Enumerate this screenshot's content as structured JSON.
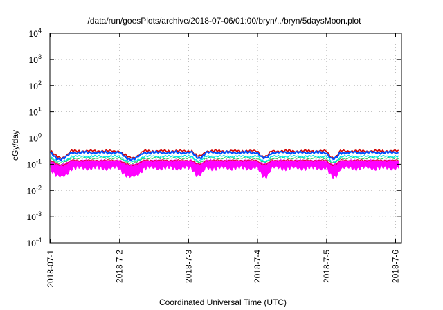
{
  "chart_data": {
    "type": "line",
    "title": "/data/run/goesPlots/archive/2018-07-06/01:00/bryn/../bryn/5daysMoon.plot",
    "xlabel": "Coordinated Universal Time (UTC)",
    "ylabel": "cGy/day",
    "yscale": "log",
    "ylim": [
      0.0001,
      10000
    ],
    "xlim": [
      "2018-07-01",
      "2018-07-06 01:00"
    ],
    "grid": true,
    "yticks": [
      {
        "value": 0.0001,
        "base": "10",
        "exp": "-4"
      },
      {
        "value": 0.001,
        "base": "10",
        "exp": "-3"
      },
      {
        "value": 0.01,
        "base": "10",
        "exp": "-2"
      },
      {
        "value": 0.1,
        "base": "10",
        "exp": "-1"
      },
      {
        "value": 1,
        "base": "10",
        "exp": "0"
      },
      {
        "value": 10,
        "base": "10",
        "exp": "1"
      },
      {
        "value": 100,
        "base": "10",
        "exp": "2"
      },
      {
        "value": 1000,
        "base": "10",
        "exp": "3"
      },
      {
        "value": 10000,
        "base": "10",
        "exp": "4"
      }
    ],
    "xticks": [
      {
        "label": "2018-07-1",
        "value": 0
      },
      {
        "label": "2018-7-2",
        "value": 1
      },
      {
        "label": "2018-7-3",
        "value": 2
      },
      {
        "label": "2018-7-4",
        "value": 3
      },
      {
        "label": "2018-7-5",
        "value": 4
      },
      {
        "label": "2018-7-6",
        "value": 5
      }
    ],
    "series_colors": [
      "#ff00ff",
      "#e8004a",
      "#33cc66",
      "#00e5e5",
      "#0050ff",
      "#d40000"
    ],
    "approx_levels": {
      "magenta_band": [
        0.07,
        0.14
      ],
      "red_lower": 0.14,
      "green": 0.17,
      "cyan": 0.2,
      "blue": 0.28,
      "red_upper": 0.32
    }
  }
}
